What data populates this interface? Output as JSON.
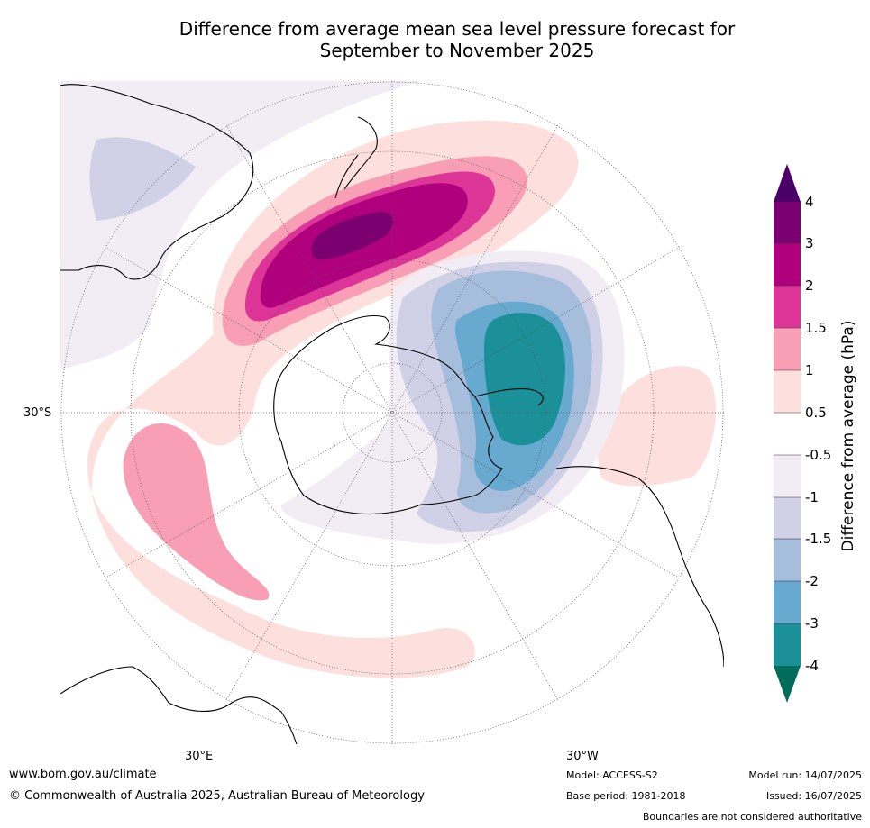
{
  "title_line1": "Difference from average mean sea level pressure forecast for",
  "title_line2": "September to November 2025",
  "map": {
    "projection": "south-polar-stereographic",
    "lat_label": "30°S",
    "lon_labels": [
      "30°E",
      "30°W"
    ],
    "features": [
      {
        "name": "positive anomaly centre south-east of New Zealand",
        "max_hPa": "3 to 4"
      },
      {
        "name": "negative anomaly centre over Amundsen/Bellingshausen Sea",
        "min_hPa": "-3 to -4"
      },
      {
        "name": "positive anomaly south of Africa",
        "max_hPa": "1 to 1.5"
      },
      {
        "name": "positive anomaly west of South America",
        "max_hPa": "0.5 to 1"
      }
    ]
  },
  "colorbar": {
    "title": "Difference from average (hPa)",
    "ticks": [
      "4",
      "3",
      "2",
      "1.5",
      "1",
      "0.5",
      "-0.5",
      "-1",
      "-1.5",
      "-2",
      "-3",
      "-4"
    ],
    "bins": [
      {
        "range": "> 4",
        "color": "#4b0068"
      },
      {
        "range": "3 to 4",
        "color": "#7b0070"
      },
      {
        "range": "2 to 3",
        "color": "#b0007d"
      },
      {
        "range": "1.5 to 2",
        "color": "#dd3497"
      },
      {
        "range": "1 to 1.5",
        "color": "#f99fb5"
      },
      {
        "range": "0.5 to 1",
        "color": "#fde0dd"
      },
      {
        "range": "-0.5 to 0.5",
        "color": "#ffffff"
      },
      {
        "range": "-1 to -0.5",
        "color": "#f2ecf5"
      },
      {
        "range": "-1.5 to -1",
        "color": "#d0d1e6"
      },
      {
        "range": "-2 to -1.5",
        "color": "#a6bddb"
      },
      {
        "range": "-3 to -2",
        "color": "#67a9cf"
      },
      {
        "range": "-4 to -3",
        "color": "#1c9099"
      },
      {
        "range": "< -4",
        "color": "#016c59"
      }
    ]
  },
  "footer": {
    "website": "www.bom.gov.au/climate",
    "copyright": "© Commonwealth of Australia 2025, Australian Bureau of Meteorology",
    "model": "Model: ACCESS-S2",
    "base_period": "Base period: 1981-2018",
    "model_run": "Model run: 14/07/2025",
    "issued": "Issued: 16/07/2025",
    "disclaimer": "Boundaries are not considered authoritative"
  }
}
